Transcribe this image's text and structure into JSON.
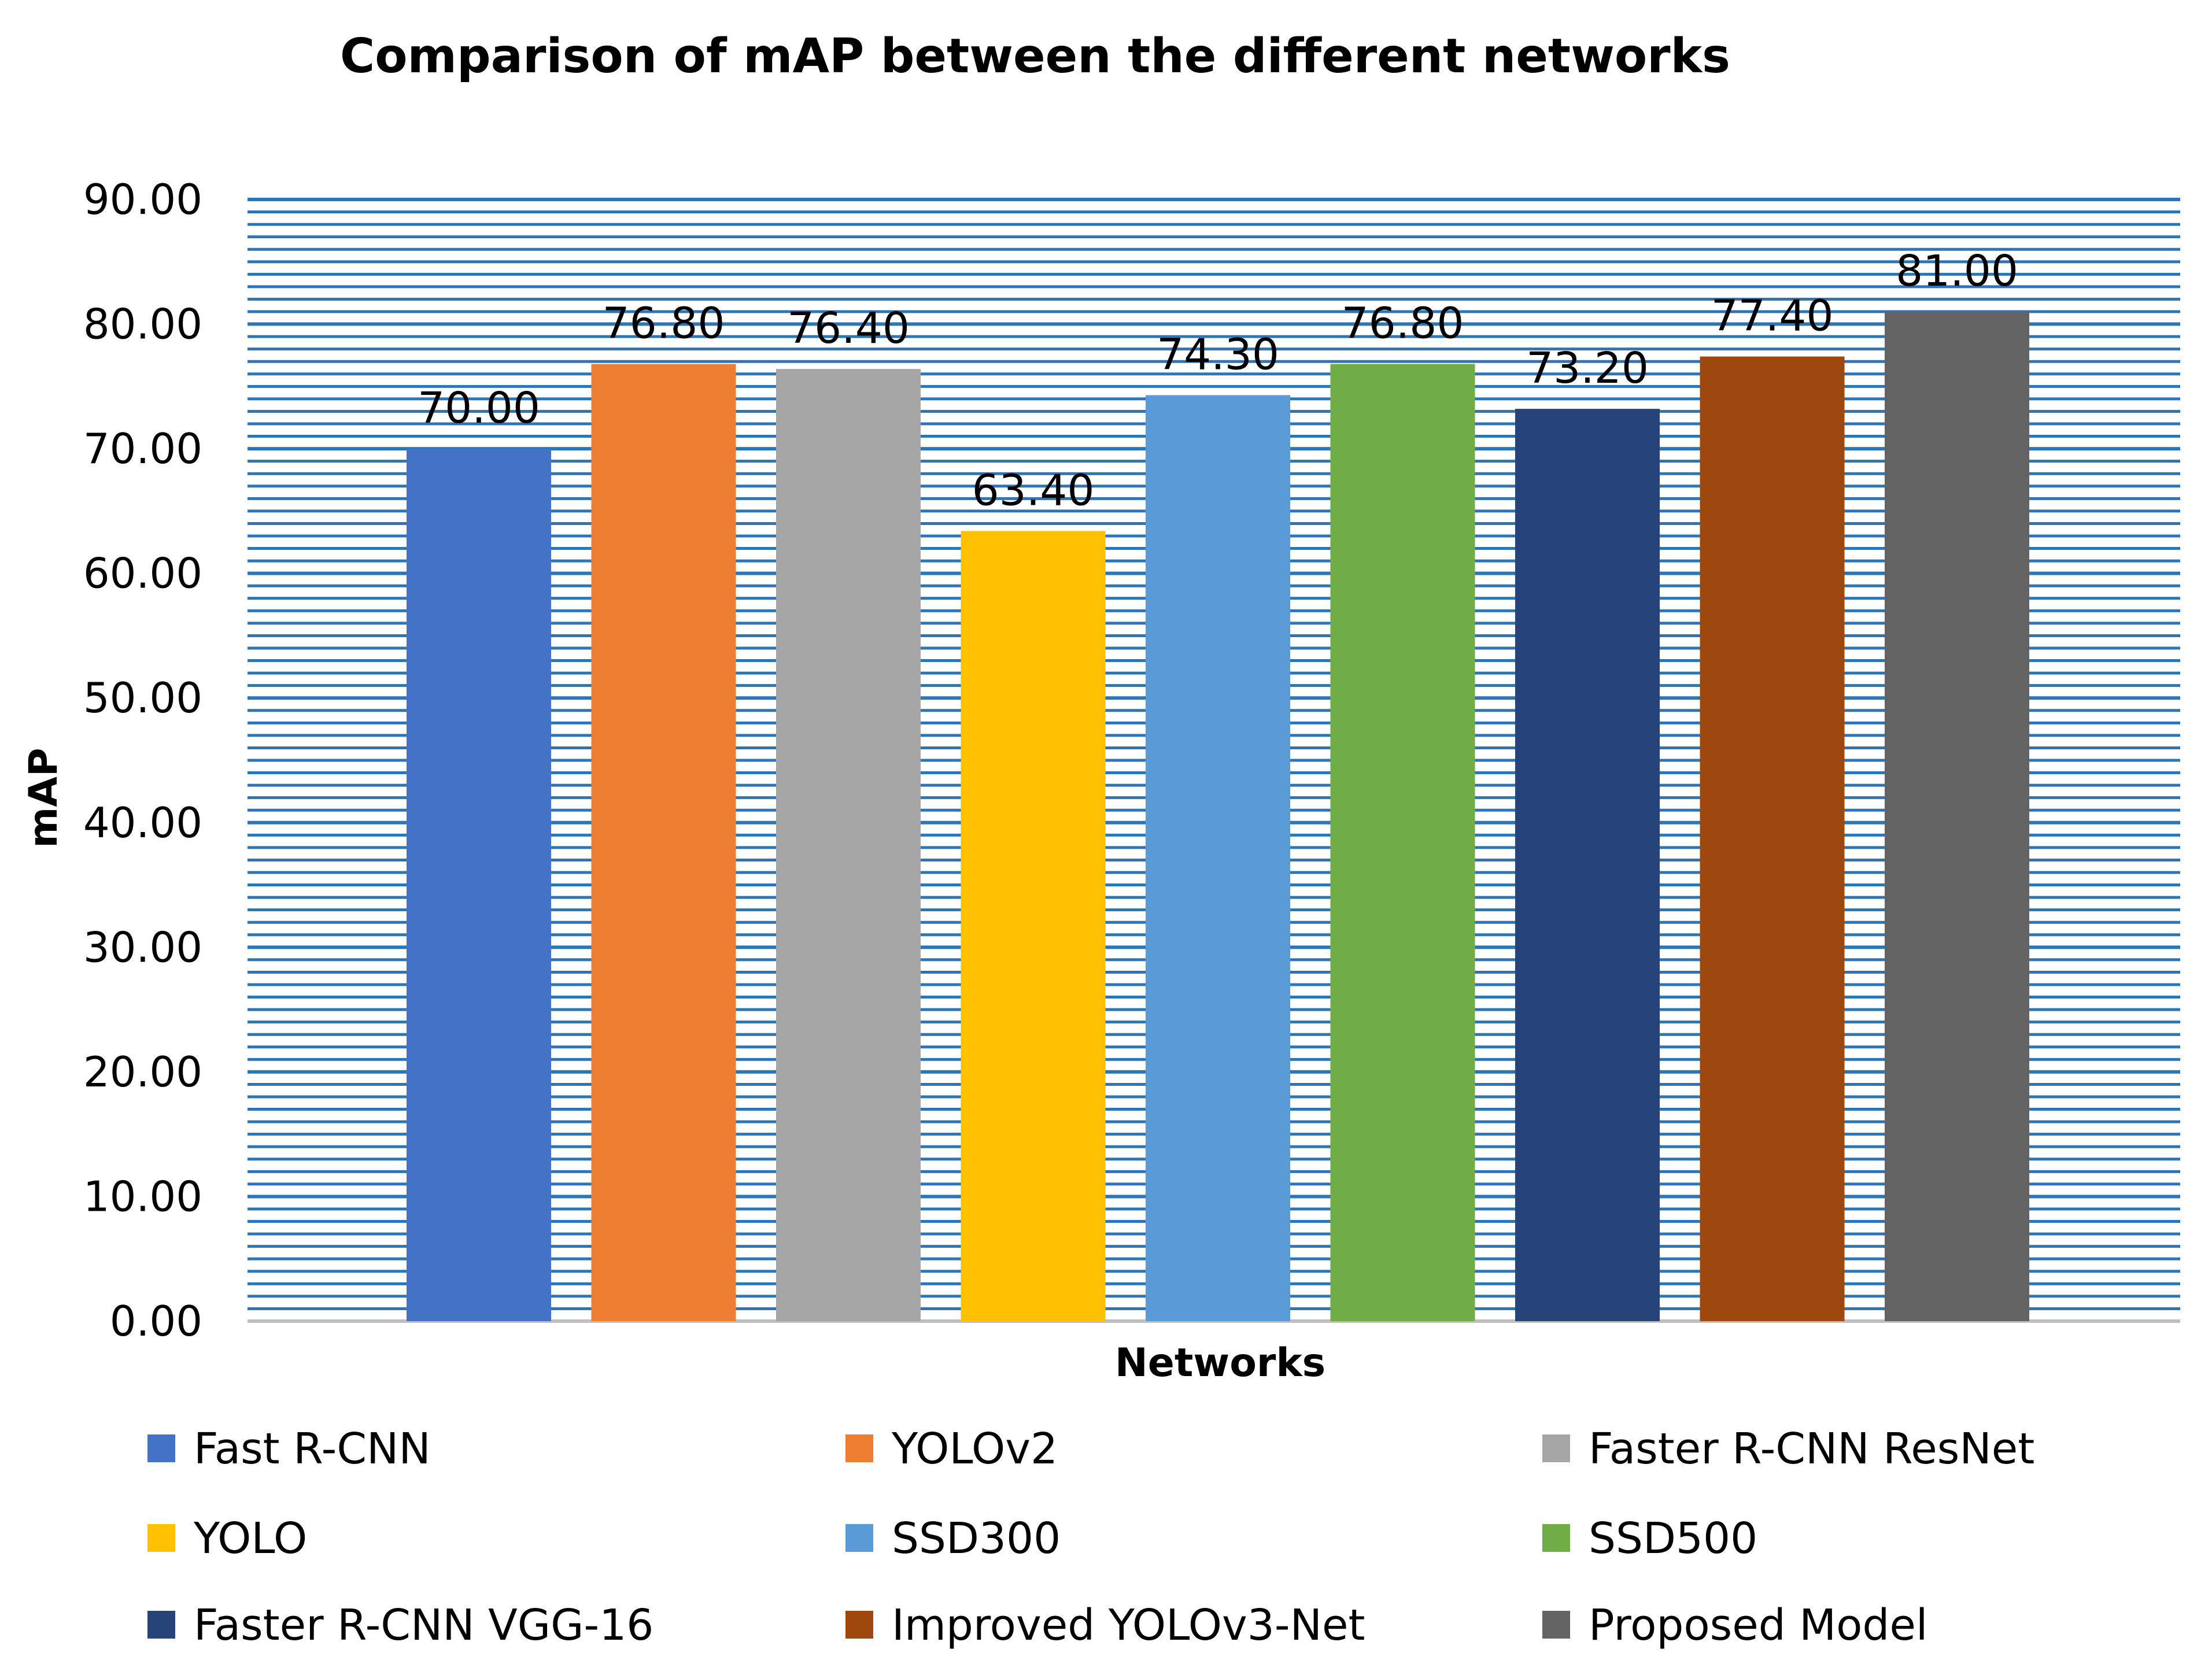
{
  "chart_data": {
    "type": "bar",
    "title": "Comparison of mAP between the different networks",
    "xlabel": "Networks",
    "ylabel": "mAP",
    "ylim": [
      0,
      90
    ],
    "y_ticks": [
      "0.00",
      "10.00",
      "20.00",
      "30.00",
      "40.00",
      "50.00",
      "60.00",
      "70.00",
      "80.00",
      "90.00"
    ],
    "grid": true,
    "legend_position": "bottom",
    "series": [
      {
        "name": "Fast R-CNN",
        "value": 70.0,
        "label": "70.00",
        "color": "#4472C4"
      },
      {
        "name": "YOLOv2",
        "value": 76.8,
        "label": "76.80",
        "color": "#ED7D31"
      },
      {
        "name": "Faster R-CNN ResNet",
        "value": 76.4,
        "label": "76.40",
        "color": "#A5A5A5"
      },
      {
        "name": "YOLO",
        "value": 63.4,
        "label": "63.40",
        "color": "#FFC000"
      },
      {
        "name": "SSD300",
        "value": 74.3,
        "label": "74.30",
        "color": "#5B9BD5"
      },
      {
        "name": "SSD500",
        "value": 76.8,
        "label": "76.80",
        "color": "#70AD47"
      },
      {
        "name": "Faster R-CNN VGG-16",
        "value": 73.2,
        "label": "73.20",
        "color": "#264478"
      },
      {
        "name": "Improved YOLOv3-Net",
        "value": 77.4,
        "label": "77.40",
        "color": "#9E480E"
      },
      {
        "name": "Proposed Model",
        "value": 81.0,
        "label": "81.00",
        "color": "#636363"
      }
    ],
    "gridline_color": "#2E75B6",
    "axis_color": "#BFBFBF"
  }
}
